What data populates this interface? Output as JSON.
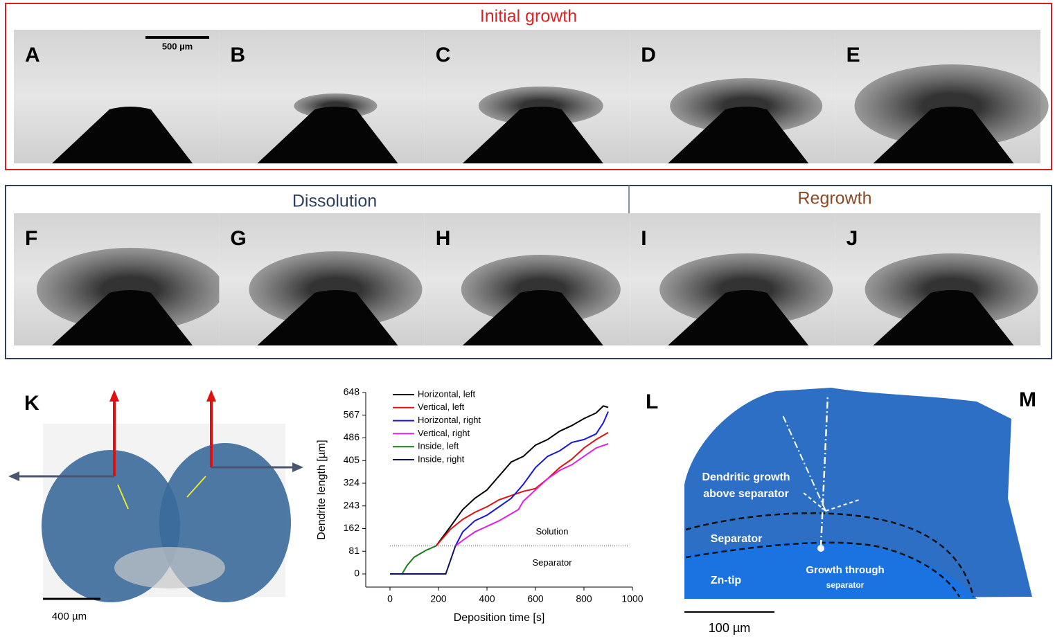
{
  "sections": {
    "initial": "Initial growth",
    "dissolution": "Dissolution",
    "regrowth": "Regrowth"
  },
  "panels": [
    {
      "label": "A"
    },
    {
      "label": "B"
    },
    {
      "label": "C"
    },
    {
      "label": "D"
    },
    {
      "label": "E"
    },
    {
      "label": "F"
    },
    {
      "label": "G"
    },
    {
      "label": "H"
    },
    {
      "label": "I"
    },
    {
      "label": "J"
    }
  ],
  "scale_bar_top": "500 µm",
  "panel_k": {
    "label": "K",
    "scale_bar": "400 µm"
  },
  "panel_l": {
    "label": "L"
  },
  "panel_m": {
    "label": "M",
    "scale_bar": "100 µm",
    "growth_above": [
      "Dendritic growth",
      "above separator"
    ],
    "separator": "Separator",
    "zn_tip": "Zn-tip",
    "growth_through": "Growth through",
    "growth_through_2": "separator"
  },
  "chart_data": {
    "type": "line",
    "xlabel": "Deposition time [s]",
    "ylabel": "Dendrite length [µm]",
    "xlim": [
      -100,
      1000
    ],
    "ylim": [
      -47,
      648
    ],
    "xticks": [
      0,
      200,
      400,
      600,
      800,
      1000
    ],
    "yticks": [
      0,
      81,
      162,
      243,
      324,
      405,
      486,
      567,
      648
    ],
    "hline": 100,
    "annotations": [
      "Solution",
      "Separator"
    ],
    "series": [
      {
        "name": "Horizontal, left",
        "color": "#000000",
        "x": [
          190,
          250,
          300,
          350,
          400,
          450,
          500,
          550,
          600,
          650,
          700,
          750,
          800,
          850,
          880,
          900
        ],
        "values": [
          100,
          170,
          230,
          270,
          300,
          350,
          400,
          420,
          460,
          480,
          510,
          530,
          555,
          575,
          600,
          595
        ]
      },
      {
        "name": "Vertical, left",
        "color": "#e01010",
        "x": [
          190,
          250,
          300,
          350,
          400,
          450,
          500,
          550,
          600,
          650,
          700,
          750,
          800,
          850,
          900
        ],
        "values": [
          100,
          160,
          195,
          220,
          240,
          265,
          280,
          295,
          305,
          340,
          380,
          410,
          450,
          480,
          505
        ]
      },
      {
        "name": "Horizontal, right",
        "color": "#1515e0",
        "x": [
          270,
          300,
          350,
          400,
          450,
          500,
          550,
          600,
          650,
          700,
          750,
          800,
          850,
          880,
          900
        ],
        "values": [
          100,
          150,
          190,
          210,
          240,
          270,
          320,
          380,
          420,
          440,
          470,
          480,
          500,
          540,
          580
        ]
      },
      {
        "name": "Vertical, right",
        "color": "#e020e0",
        "x": [
          270,
          300,
          350,
          400,
          450,
          500,
          530,
          550,
          600,
          650,
          700,
          750,
          800,
          850,
          900
        ],
        "values": [
          100,
          120,
          150,
          170,
          190,
          215,
          230,
          260,
          300,
          340,
          370,
          390,
          420,
          450,
          465
        ]
      },
      {
        "name": "Inside, left",
        "color": "#1a7a1a",
        "x": [
          0,
          50,
          70,
          100,
          150,
          190
        ],
        "values": [
          0,
          0,
          30,
          60,
          85,
          100
        ]
      },
      {
        "name": "Inside, right",
        "color": "#101060",
        "x": [
          0,
          200,
          230,
          250,
          270
        ],
        "values": [
          0,
          0,
          0,
          50,
          100
        ]
      }
    ]
  }
}
